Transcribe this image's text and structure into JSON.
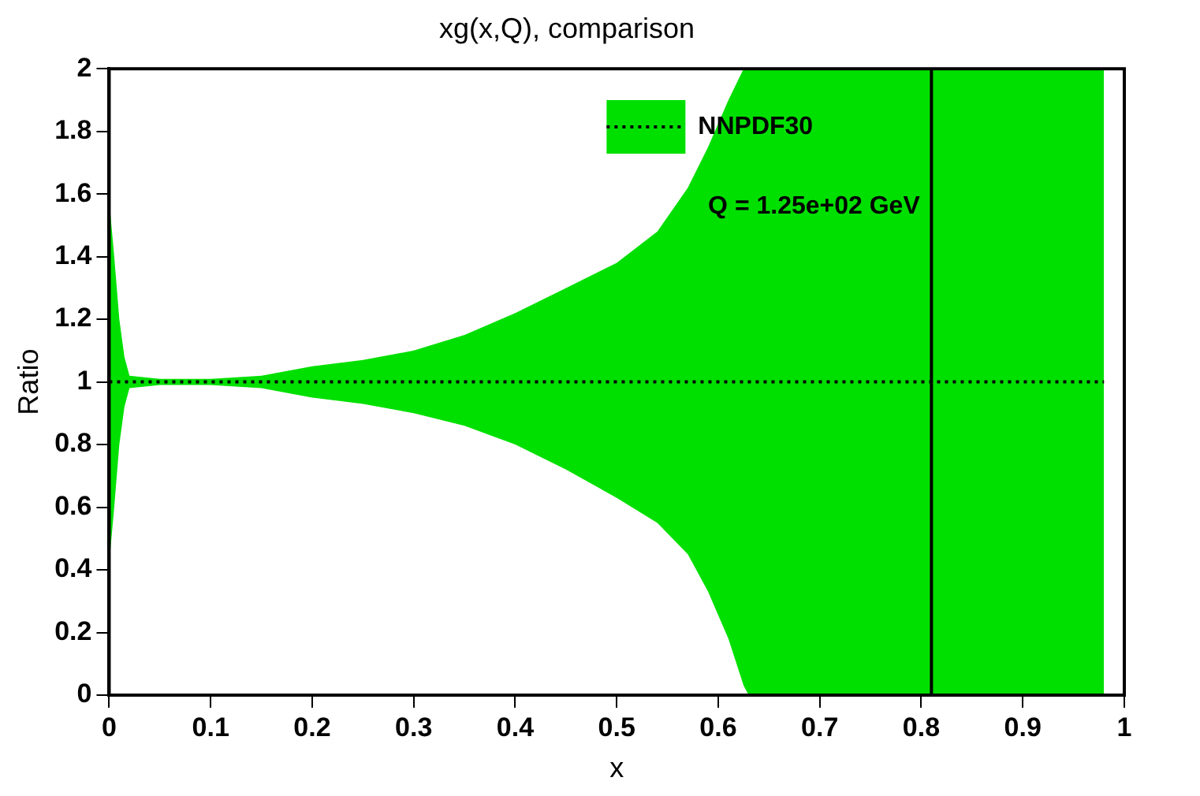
{
  "chart_data": {
    "type": "line",
    "title": "xg(x,Q), comparison",
    "xlabel": "x",
    "ylabel": "Ratio",
    "x": [
      0,
      0.005,
      0.01,
      0.015,
      0.02,
      0.05,
      0.1,
      0.15,
      0.2,
      0.25,
      0.3,
      0.35,
      0.4,
      0.45,
      0.5,
      0.54,
      0.57,
      0.59,
      0.61,
      0.625,
      0.63,
      0.7,
      0.8,
      0.9,
      0.98
    ],
    "series": [
      {
        "name": "NNPDF30",
        "color": "#000000",
        "line_style": "dotted",
        "values": [
          1,
          1,
          1,
          1,
          1,
          1,
          1,
          1,
          1,
          1,
          1,
          1,
          1,
          1,
          1,
          1,
          1,
          1,
          1,
          1,
          1,
          1,
          1,
          1,
          1
        ],
        "lower": [
          0.42,
          0.6,
          0.8,
          0.92,
          0.98,
          0.99,
          0.99,
          0.98,
          0.95,
          0.93,
          0.9,
          0.86,
          0.8,
          0.72,
          0.63,
          0.55,
          0.45,
          0.33,
          0.18,
          0.03,
          0,
          0,
          0,
          0,
          0
        ],
        "upper": [
          1.58,
          1.4,
          1.2,
          1.08,
          1.02,
          1.01,
          1.01,
          1.02,
          1.05,
          1.07,
          1.1,
          1.15,
          1.22,
          1.3,
          1.38,
          1.48,
          1.62,
          1.75,
          1.9,
          2,
          2,
          2,
          2,
          2,
          2
        ]
      }
    ],
    "ref_lines": [
      {
        "axis": "x",
        "value": 0.81,
        "color": "#000000"
      }
    ],
    "annotations": [
      "Q = 1.25e+02 GeV"
    ],
    "xlim": [
      0,
      1
    ],
    "xticks": [
      0,
      0.1,
      0.2,
      0.3,
      0.4,
      0.5,
      0.6,
      0.7,
      0.8,
      0.9,
      1
    ],
    "ylim": [
      0,
      2
    ],
    "yticks": [
      0,
      0.2,
      0.4,
      0.6,
      0.8,
      1,
      1.2,
      1.4,
      1.6,
      1.8,
      2
    ],
    "grid": false,
    "legend": "top right",
    "marker": "none"
  }
}
